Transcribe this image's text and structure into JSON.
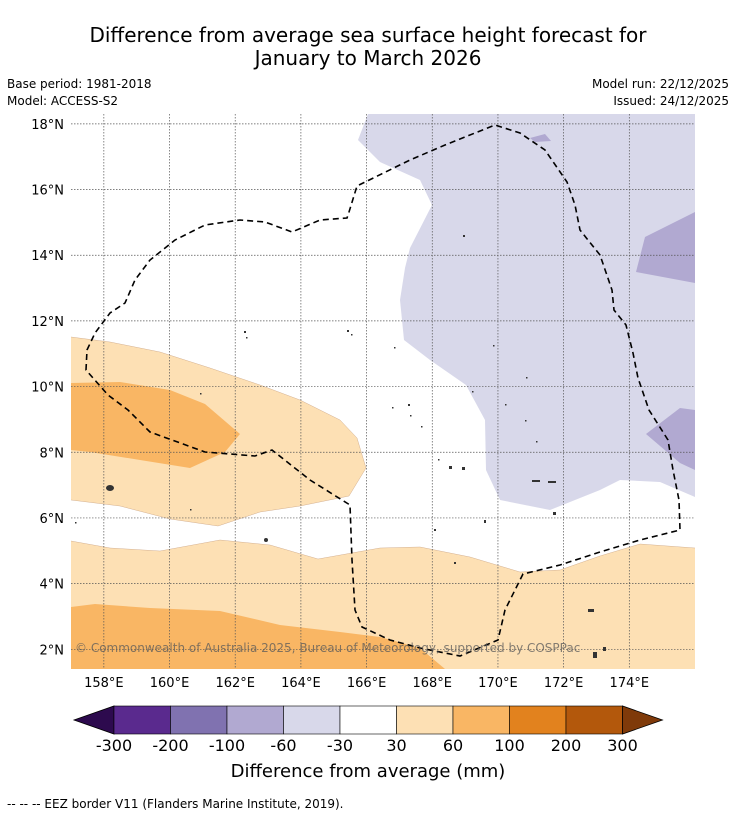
{
  "header": {
    "title_line1": "Difference from average sea surface height forecast for",
    "title_line2": "January to March 2026",
    "base_period": "Base period: 1981-2018",
    "model": "Model: ACCESS-S2",
    "model_run": "Model run: 22/12/2025",
    "issued": "Issued: 24/12/2025"
  },
  "chart_data": {
    "type": "heatmap",
    "title": "Difference from average sea surface height forecast for January to March 2026",
    "x_ticks": [
      "158°E",
      "160°E",
      "162°E",
      "164°E",
      "166°E",
      "168°E",
      "170°E",
      "172°E",
      "174°E"
    ],
    "y_ticks": [
      "18°N",
      "16°N",
      "14°N",
      "12°N",
      "10°N",
      "8°N",
      "6°N",
      "4°N",
      "2°N"
    ],
    "lon_range": [
      157,
      176
    ],
    "lat_range": [
      1.4,
      18.3
    ],
    "colorbar": {
      "label": "Difference from average (mm)",
      "tick_labels": [
        "-300",
        "-200",
        "-100",
        "-60",
        "-30",
        "30",
        "60",
        "100",
        "200",
        "300"
      ],
      "bins": [
        {
          "from": -300,
          "to": -200,
          "color": "#5a2a8e"
        },
        {
          "from": -200,
          "to": -100,
          "color": "#8072b0"
        },
        {
          "from": -100,
          "to": -60,
          "color": "#b1a9d1"
        },
        {
          "from": -60,
          "to": -30,
          "color": "#d8d8ea"
        },
        {
          "from": -30,
          "to": 30,
          "color": "#ffffff"
        },
        {
          "from": 30,
          "to": 60,
          "color": "#fde0b4"
        },
        {
          "from": 60,
          "to": 100,
          "color": "#f9b664"
        },
        {
          "from": 100,
          "to": 200,
          "color": "#e2821e"
        },
        {
          "from": 200,
          "to": 300,
          "color": "#b3580c"
        }
      ],
      "under_color": "#2d0a4e",
      "over_color": "#7f3a0a"
    },
    "legend": {
      "eez_border": "--  --  -- EEZ border V11 (Flanders Marine Institute, 2019)."
    },
    "annotation": "© Commonwealth of Australia 2025, Bureau of Meteorology, supported by COSPPac"
  },
  "colors": {
    "grid": "#666666",
    "eez_line": "#000000"
  }
}
